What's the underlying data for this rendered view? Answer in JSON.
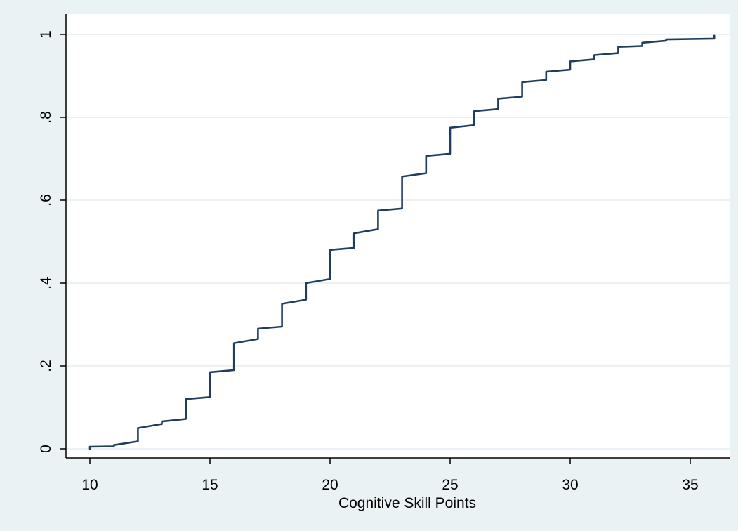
{
  "chart_data": {
    "type": "line",
    "title": "",
    "xlabel": "Cognitive Skill Points",
    "ylabel": "",
    "xlim": [
      10,
      36.35
    ],
    "ylim": [
      -0.02,
      1.015
    ],
    "grid": true,
    "legend": "none",
    "x_ticks": [
      10,
      15,
      20,
      25,
      30,
      35
    ],
    "x_tick_labels": [
      "10",
      "15",
      "20",
      "25",
      "30",
      "35"
    ],
    "y_ticks": [
      0,
      0.2,
      0.4,
      0.6,
      0.8,
      1
    ],
    "y_tick_labels": [
      "0",
      ".2",
      ".4",
      ".6",
      ".8",
      "1"
    ],
    "colors": {
      "background": "#eaf2f3",
      "plot_area": "#ffffff",
      "line": "#1f3e5f",
      "grid": "#e6eef0",
      "axis": "#000000"
    },
    "series": [
      {
        "x": [
          10,
          10,
          11,
          11,
          12,
          12,
          13,
          13,
          14,
          14,
          15,
          15,
          16,
          16,
          17,
          17,
          18,
          18,
          19,
          19,
          20,
          20,
          21,
          21,
          22,
          22,
          23,
          23,
          24,
          24,
          25,
          25,
          26,
          26,
          27,
          27,
          28,
          28,
          29,
          29,
          30,
          30,
          31,
          31,
          32,
          32,
          33,
          33,
          34,
          34,
          36,
          36
        ],
        "y": [
          0.0,
          0.005,
          0.006,
          0.009,
          0.018,
          0.05,
          0.06,
          0.066,
          0.072,
          0.12,
          0.125,
          0.185,
          0.19,
          0.255,
          0.265,
          0.29,
          0.295,
          0.35,
          0.36,
          0.4,
          0.41,
          0.48,
          0.485,
          0.52,
          0.53,
          0.575,
          0.58,
          0.657,
          0.665,
          0.707,
          0.712,
          0.775,
          0.781,
          0.815,
          0.82,
          0.845,
          0.85,
          0.885,
          0.89,
          0.91,
          0.915,
          0.935,
          0.94,
          0.95,
          0.955,
          0.97,
          0.972,
          0.98,
          0.985,
          0.988,
          0.99,
          0.997
        ]
      }
    ]
  }
}
